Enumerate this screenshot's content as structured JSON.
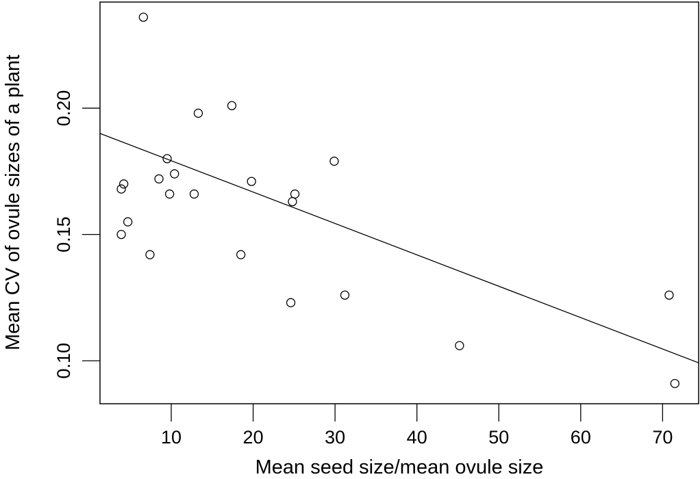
{
  "chart_data": {
    "type": "scatter",
    "title": "",
    "xlabel": "Mean seed size/mean ovule size",
    "ylabel": "Mean CV of ovule sizes of a plant",
    "xlim": [
      1.3,
      74.4
    ],
    "ylim": [
      0.083,
      0.242
    ],
    "xticks": [
      10,
      20,
      30,
      40,
      50,
      60,
      70
    ],
    "yticks": [
      0.1,
      0.15,
      0.2
    ],
    "ytick_labels": [
      "0.10",
      "0.15",
      "0.20"
    ],
    "grid": false,
    "points": [
      [
        6.6,
        0.236
      ],
      [
        13.3,
        0.198
      ],
      [
        17.4,
        0.201
      ],
      [
        9.5,
        0.18
      ],
      [
        8.5,
        0.172
      ],
      [
        10.4,
        0.174
      ],
      [
        4.2,
        0.17
      ],
      [
        3.9,
        0.168
      ],
      [
        9.8,
        0.166
      ],
      [
        12.8,
        0.166
      ],
      [
        19.8,
        0.171
      ],
      [
        25.1,
        0.166
      ],
      [
        24.8,
        0.163
      ],
      [
        29.9,
        0.179
      ],
      [
        4.7,
        0.155
      ],
      [
        3.9,
        0.15
      ],
      [
        7.4,
        0.142
      ],
      [
        18.5,
        0.142
      ],
      [
        24.6,
        0.123
      ],
      [
        31.2,
        0.126
      ],
      [
        45.2,
        0.106
      ],
      [
        70.8,
        0.126
      ],
      [
        71.5,
        0.091
      ]
    ],
    "fit_line": {
      "x": [
        1.3,
        74.4
      ],
      "y": [
        0.19,
        0.0992
      ]
    },
    "marker": "open-circle",
    "color": "#000000"
  }
}
